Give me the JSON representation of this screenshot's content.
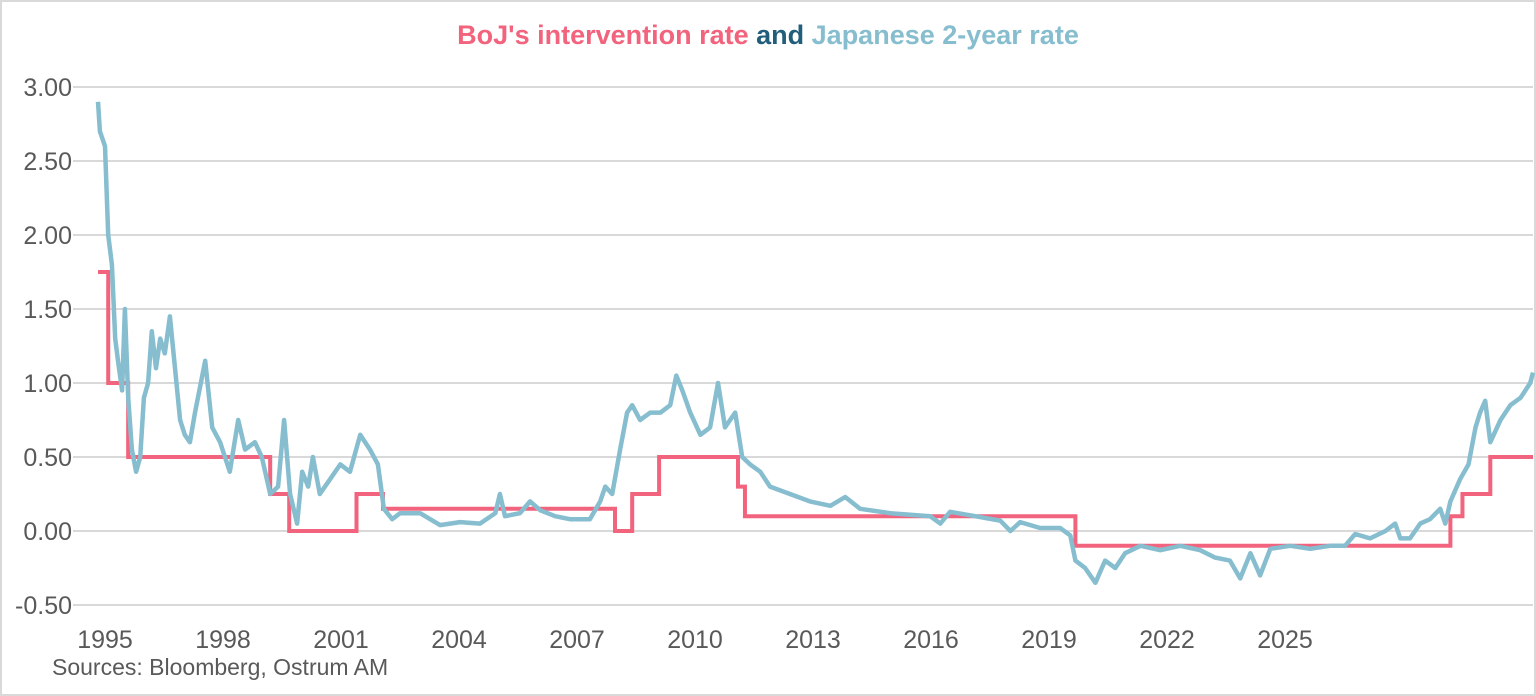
{
  "chart_data": {
    "type": "line",
    "title_parts": [
      {
        "text": "BoJ's intervention rate",
        "color": "#F2637D"
      },
      {
        "text": " and ",
        "color": "#215E7C"
      },
      {
        "text": "Japanese 2-year rate",
        "color": "#86BDCF"
      }
    ],
    "source": "Sources: Bloomberg, Ostrum AM",
    "xlim": [
      1995.0,
      2025.95
    ],
    "ylim": [
      -0.5,
      3.0
    ],
    "yticks": [
      3.0,
      2.5,
      2.0,
      1.5,
      1.0,
      0.5,
      0.0,
      -0.5
    ],
    "ytick_labels": [
      "3.00",
      "2.50",
      "2.00",
      "1.50",
      "1.00",
      "0.50",
      "0.00",
      "-0.50"
    ],
    "xtick_labels": [
      "1995",
      "1998",
      "2001",
      "2004",
      "2007",
      "2010",
      "2013",
      "2016",
      "2019",
      "2022",
      "2025"
    ],
    "grid": true,
    "series": [
      {
        "name": "BoJ's intervention rate",
        "color": "#F2637D",
        "step": true,
        "points": [
          [
            1995.03,
            1.75
          ],
          [
            1995.25,
            1.0
          ],
          [
            1995.68,
            0.5
          ],
          [
            1998.74,
            0.25
          ],
          [
            1999.15,
            0.0
          ],
          [
            2000.6,
            0.25
          ],
          [
            2001.17,
            0.15
          ],
          [
            2006.17,
            0.0
          ],
          [
            2006.54,
            0.25
          ],
          [
            2007.12,
            0.5
          ],
          [
            2008.82,
            0.3
          ],
          [
            2008.97,
            0.1
          ],
          [
            2016.09,
            -0.1
          ],
          [
            2024.17,
            0.1
          ],
          [
            2024.43,
            0.25
          ],
          [
            2025.03,
            0.5
          ],
          [
            2025.95,
            0.5
          ]
        ]
      },
      {
        "name": "Japanese 2-year rate",
        "color": "#86BDCF",
        "points": [
          [
            1995.03,
            2.9
          ],
          [
            1995.07,
            2.7
          ],
          [
            1995.18,
            2.6
          ],
          [
            1995.25,
            2.0
          ],
          [
            1995.33,
            1.8
          ],
          [
            1995.4,
            1.3
          ],
          [
            1995.46,
            1.15
          ],
          [
            1995.55,
            0.95
          ],
          [
            1995.61,
            1.5
          ],
          [
            1995.68,
            0.9
          ],
          [
            1995.76,
            0.55
          ],
          [
            1995.85,
            0.4
          ],
          [
            1995.94,
            0.5
          ],
          [
            1996.02,
            0.9
          ],
          [
            1996.11,
            1.0
          ],
          [
            1996.19,
            1.35
          ],
          [
            1996.28,
            1.1
          ],
          [
            1996.37,
            1.3
          ],
          [
            1996.47,
            1.2
          ],
          [
            1996.58,
            1.45
          ],
          [
            1996.69,
            1.1
          ],
          [
            1996.8,
            0.75
          ],
          [
            1996.9,
            0.65
          ],
          [
            1997.01,
            0.6
          ],
          [
            1997.12,
            0.8
          ],
          [
            1997.34,
            1.15
          ],
          [
            1997.49,
            0.7
          ],
          [
            1997.66,
            0.6
          ],
          [
            1997.87,
            0.4
          ],
          [
            1998.05,
            0.75
          ],
          [
            1998.2,
            0.55
          ],
          [
            1998.41,
            0.6
          ],
          [
            1998.56,
            0.5
          ],
          [
            1998.74,
            0.25
          ],
          [
            1998.91,
            0.3
          ],
          [
            1999.04,
            0.75
          ],
          [
            1999.17,
            0.25
          ],
          [
            1999.32,
            0.05
          ],
          [
            1999.43,
            0.4
          ],
          [
            1999.56,
            0.3
          ],
          [
            1999.66,
            0.5
          ],
          [
            1999.81,
            0.25
          ],
          [
            2000.03,
            0.35
          ],
          [
            2000.25,
            0.45
          ],
          [
            2000.46,
            0.4
          ],
          [
            2000.68,
            0.65
          ],
          [
            2000.89,
            0.55
          ],
          [
            2001.06,
            0.45
          ],
          [
            2001.19,
            0.15
          ],
          [
            2001.37,
            0.08
          ],
          [
            2001.54,
            0.12
          ],
          [
            2001.97,
            0.12
          ],
          [
            2002.4,
            0.04
          ],
          [
            2002.83,
            0.06
          ],
          [
            2003.26,
            0.05
          ],
          [
            2003.59,
            0.12
          ],
          [
            2003.69,
            0.25
          ],
          [
            2003.8,
            0.1
          ],
          [
            2004.12,
            0.12
          ],
          [
            2004.34,
            0.2
          ],
          [
            2004.56,
            0.14
          ],
          [
            2004.88,
            0.1
          ],
          [
            2005.2,
            0.08
          ],
          [
            2005.63,
            0.08
          ],
          [
            2005.85,
            0.2
          ],
          [
            2005.96,
            0.3
          ],
          [
            2006.11,
            0.25
          ],
          [
            2006.28,
            0.55
          ],
          [
            2006.43,
            0.8
          ],
          [
            2006.54,
            0.85
          ],
          [
            2006.71,
            0.75
          ],
          [
            2006.93,
            0.8
          ],
          [
            2007.15,
            0.8
          ],
          [
            2007.36,
            0.85
          ],
          [
            2007.49,
            1.05
          ],
          [
            2007.62,
            0.95
          ],
          [
            2007.79,
            0.8
          ],
          [
            2008.01,
            0.65
          ],
          [
            2008.22,
            0.7
          ],
          [
            2008.39,
            1.0
          ],
          [
            2008.54,
            0.7
          ],
          [
            2008.76,
            0.8
          ],
          [
            2008.91,
            0.5
          ],
          [
            2009.08,
            0.45
          ],
          [
            2009.3,
            0.4
          ],
          [
            2009.51,
            0.3
          ],
          [
            2009.94,
            0.25
          ],
          [
            2010.37,
            0.2
          ],
          [
            2010.81,
            0.17
          ],
          [
            2011.13,
            0.23
          ],
          [
            2011.45,
            0.15
          ],
          [
            2012.1,
            0.12
          ],
          [
            2012.96,
            0.1
          ],
          [
            2013.18,
            0.05
          ],
          [
            2013.39,
            0.13
          ],
          [
            2013.93,
            0.1
          ],
          [
            2014.47,
            0.07
          ],
          [
            2014.69,
            0.0
          ],
          [
            2014.9,
            0.06
          ],
          [
            2015.33,
            0.02
          ],
          [
            2015.76,
            0.02
          ],
          [
            2015.98,
            -0.03
          ],
          [
            2016.09,
            -0.2
          ],
          [
            2016.3,
            -0.25
          ],
          [
            2016.52,
            -0.35
          ],
          [
            2016.73,
            -0.2
          ],
          [
            2016.95,
            -0.25
          ],
          [
            2017.16,
            -0.15
          ],
          [
            2017.49,
            -0.1
          ],
          [
            2017.92,
            -0.13
          ],
          [
            2018.35,
            -0.1
          ],
          [
            2018.78,
            -0.13
          ],
          [
            2019.1,
            -0.18
          ],
          [
            2019.42,
            -0.2
          ],
          [
            2019.64,
            -0.32
          ],
          [
            2019.86,
            -0.15
          ],
          [
            2020.07,
            -0.3
          ],
          [
            2020.29,
            -0.12
          ],
          [
            2020.72,
            -0.1
          ],
          [
            2021.15,
            -0.12
          ],
          [
            2021.58,
            -0.1
          ],
          [
            2021.9,
            -0.1
          ],
          [
            2022.12,
            -0.02
          ],
          [
            2022.44,
            -0.05
          ],
          [
            2022.77,
            0.0
          ],
          [
            2022.98,
            0.05
          ],
          [
            2023.09,
            -0.05
          ],
          [
            2023.3,
            -0.05
          ],
          [
            2023.52,
            0.05
          ],
          [
            2023.73,
            0.08
          ],
          [
            2023.95,
            0.15
          ],
          [
            2024.06,
            0.05
          ],
          [
            2024.17,
            0.2
          ],
          [
            2024.38,
            0.35
          ],
          [
            2024.56,
            0.45
          ],
          [
            2024.71,
            0.7
          ],
          [
            2024.81,
            0.8
          ],
          [
            2024.92,
            0.88
          ],
          [
            2025.03,
            0.6
          ],
          [
            2025.25,
            0.75
          ],
          [
            2025.46,
            0.85
          ],
          [
            2025.68,
            0.9
          ],
          [
            2025.89,
            1.0
          ],
          [
            2025.95,
            1.07
          ]
        ]
      }
    ]
  }
}
